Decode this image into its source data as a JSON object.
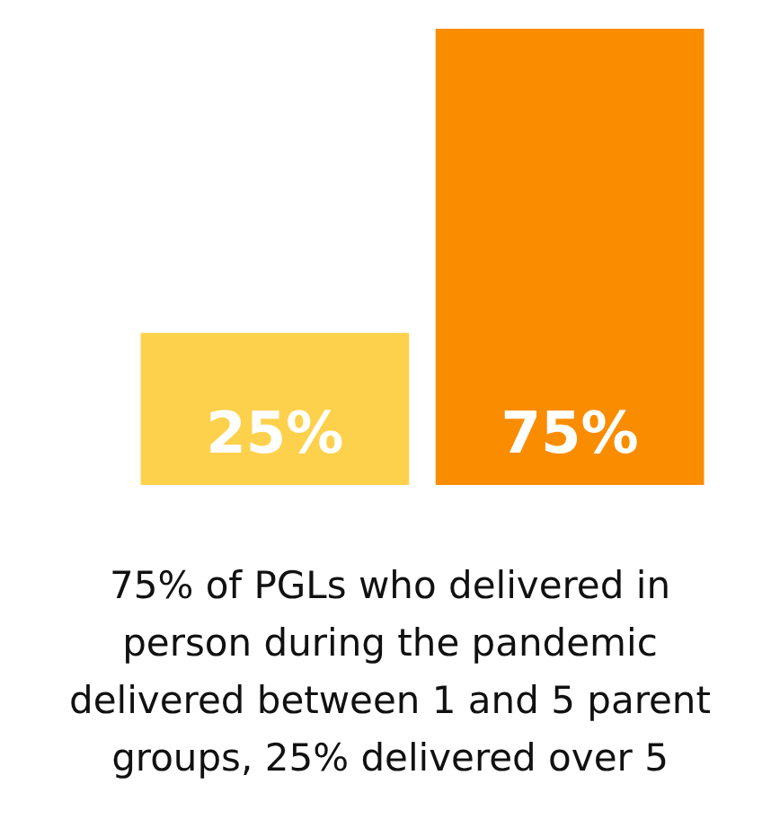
{
  "chart_data": {
    "type": "bar",
    "categories": [
      null,
      null
    ],
    "values": [
      25,
      75
    ],
    "colors": [
      "#fed14c",
      "#fa8c00"
    ],
    "value_labels": [
      "25%",
      "75%"
    ],
    "annotations": [
      "75% of PGLs who delivered in person during the pandemic delivered between 1 and 5 parent groups, 25% delivered over 5"
    ]
  }
}
